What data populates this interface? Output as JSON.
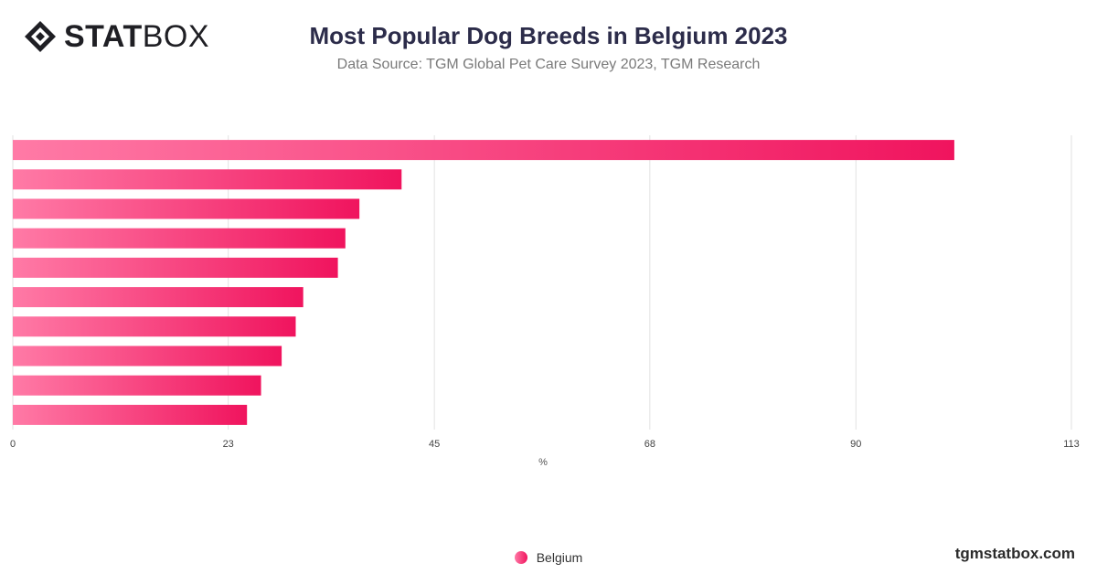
{
  "header": {
    "logo_bold": "STAT",
    "logo_light": "BOX",
    "title": "Most Popular Dog Breeds in Belgium 2023",
    "subtitle": "Data Source: TGM Global Pet Care Survey 2023, TGM Research"
  },
  "footer": {
    "site": "tgmstatbox.com"
  },
  "colors": {
    "bar_start": "#ff7aa6",
    "bar_end": "#f0145e",
    "grid": "#e2e2e2"
  },
  "chart_data": {
    "type": "bar",
    "orientation": "horizontal",
    "title": "Most Popular Dog Breeds in Belgium 2023",
    "subtitle": "Data Source: TGM Global Pet Care Survey 2023, TGM Research",
    "xlabel": "%",
    "ylabel": "",
    "xlim": [
      0,
      113
    ],
    "x_ticks": [
      0,
      23,
      45,
      68,
      90,
      113
    ],
    "grid": true,
    "legend": "bottom",
    "series": [
      {
        "name": "Belgium",
        "values": [
          100.5,
          41.5,
          37,
          35.5,
          34.7,
          31,
          30.2,
          28.7,
          26.5,
          25
        ]
      }
    ]
  }
}
